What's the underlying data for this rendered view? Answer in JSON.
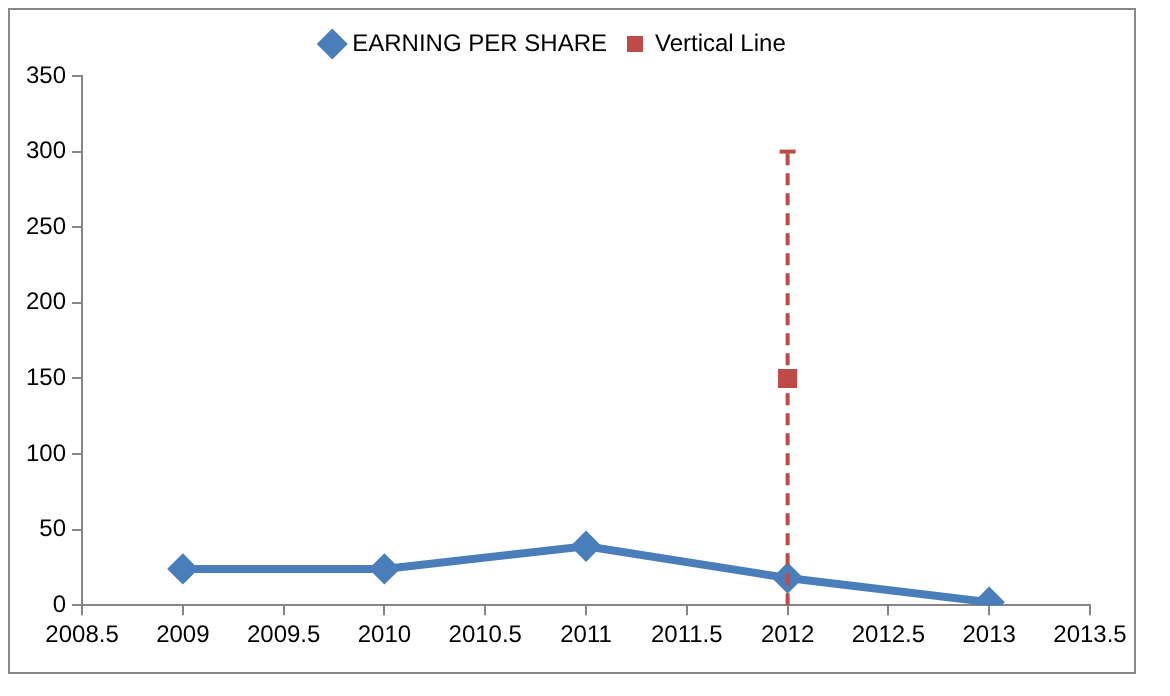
{
  "chart_data": {
    "type": "line",
    "xlim": [
      2008.5,
      2013.5
    ],
    "xticks": [
      2008.5,
      2009,
      2009.5,
      2010,
      2010.5,
      2011,
      2011.5,
      2012,
      2012.5,
      2013,
      2013.5
    ],
    "ylim": [
      0,
      350
    ],
    "yticks": [
      0,
      50,
      100,
      150,
      200,
      250,
      300,
      350
    ],
    "grid": false,
    "legend": "top",
    "series": [
      {
        "name": "EARNING PER SHARE",
        "color": "#4a7ebb",
        "marker": "diamond",
        "x": [
          2009,
          2010,
          2011,
          2012,
          2013
        ],
        "values": [
          24,
          24,
          39,
          18,
          2
        ]
      },
      {
        "name": "Vertical Line",
        "color": "#be4b48",
        "type": "scatter",
        "marker": "square",
        "line_style": "dashed",
        "x": [
          2012
        ],
        "values": [
          150
        ],
        "errors": [
          150
        ]
      }
    ]
  }
}
